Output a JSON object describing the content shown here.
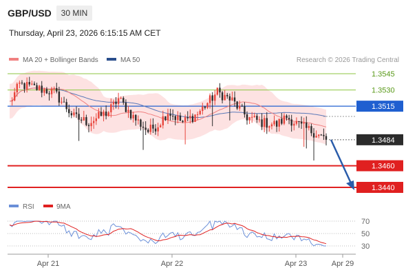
{
  "header": {
    "symbol": "GBP/USD",
    "timeframe": "30 MIN",
    "timestamp": "Thursday, April 23, 2026 6:15:15 AM CET"
  },
  "legend": {
    "bollinger_label": "MA 20 + Bollinger Bands",
    "ma50_label": "MA 50",
    "copyright": "Research © 2026 Trading Central"
  },
  "chart_data": [
    {
      "type": "line",
      "subtype": "candlestick",
      "price_range": [
        1.341,
        1.356
      ],
      "current_price": "1.3484",
      "level_labels": [
        "1.3545",
        "1.3530",
        "1.3515",
        "1.3484",
        "1.3460",
        "1.3440"
      ],
      "resistance_levels": [
        {
          "value": 1.3545,
          "label": "1.3545",
          "color": "#8dc63f"
        },
        {
          "value": 1.353,
          "label": "1.3530",
          "color": "#8dc63f"
        }
      ],
      "pivot_level": {
        "value": 1.3515,
        "label": "1.3515",
        "color": "#2060d0"
      },
      "support_levels": [
        {
          "value": 1.346,
          "label": "1.3460",
          "color": "#e02020"
        },
        {
          "value": 1.344,
          "label": "1.3440",
          "color": "#e02020"
        }
      ],
      "x_ticks": [
        "Apr 21",
        "Apr 22",
        "Apr 23",
        "Apr 29"
      ],
      "forecast": {
        "from": 1.3484,
        "to": 1.344,
        "color": "#2a5caa"
      },
      "colors": {
        "up": "#e8453c",
        "down": "#2b2b2b",
        "ma50": "#5a78b8",
        "ma20": "#f08080",
        "band": "#fde2e2"
      }
    },
    {
      "type": "line",
      "legend": [
        "RSI",
        "9MA"
      ],
      "y_ticks": [
        "70",
        "50",
        "30"
      ],
      "ylim": [
        20,
        80
      ],
      "colors": {
        "rsi": "#6a8fd8",
        "ma9": "#e02020"
      }
    }
  ]
}
